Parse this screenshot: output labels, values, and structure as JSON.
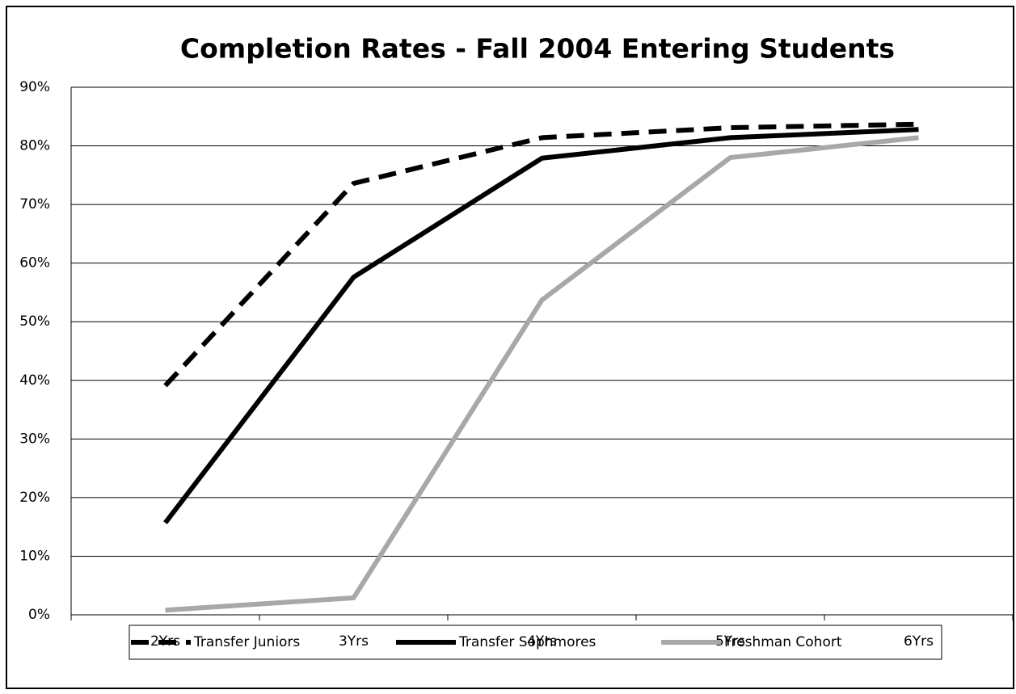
{
  "chart_data": {
    "type": "line",
    "title": "Completion Rates - Fall 2004 Entering Students",
    "categories": [
      "2Yrs",
      "3Yrs",
      "4Yrs",
      "5Yrs",
      "6Yrs"
    ],
    "series": [
      {
        "name": "Transfer Juniors",
        "color": "#000000",
        "line_style": "dashed",
        "values": [
          39.1,
          73.6,
          81.4,
          83.1,
          83.7
        ]
      },
      {
        "name": "Transfer Sophmores",
        "color": "#000000",
        "line_style": "solid",
        "values": [
          15.7,
          57.6,
          77.9,
          81.4,
          82.8
        ]
      },
      {
        "name": "Freshman Cohort",
        "color": "#a8a8a8",
        "line_style": "solid",
        "values": [
          0.8,
          2.9,
          53.7,
          78.0,
          81.4
        ]
      }
    ],
    "ylim": [
      0,
      90
    ],
    "yticks": [
      {
        "value": 0,
        "label": "0%"
      },
      {
        "value": 10,
        "label": "10%"
      },
      {
        "value": 20,
        "label": "20%"
      },
      {
        "value": 30,
        "label": "30%"
      },
      {
        "value": 40,
        "label": "40%"
      },
      {
        "value": 50,
        "label": "50%"
      },
      {
        "value": 60,
        "label": "60%"
      },
      {
        "value": 70,
        "label": "70%"
      },
      {
        "value": 80,
        "label": "80%"
      },
      {
        "value": 90,
        "label": "90%"
      }
    ],
    "grid": true,
    "legend": "bottom"
  }
}
